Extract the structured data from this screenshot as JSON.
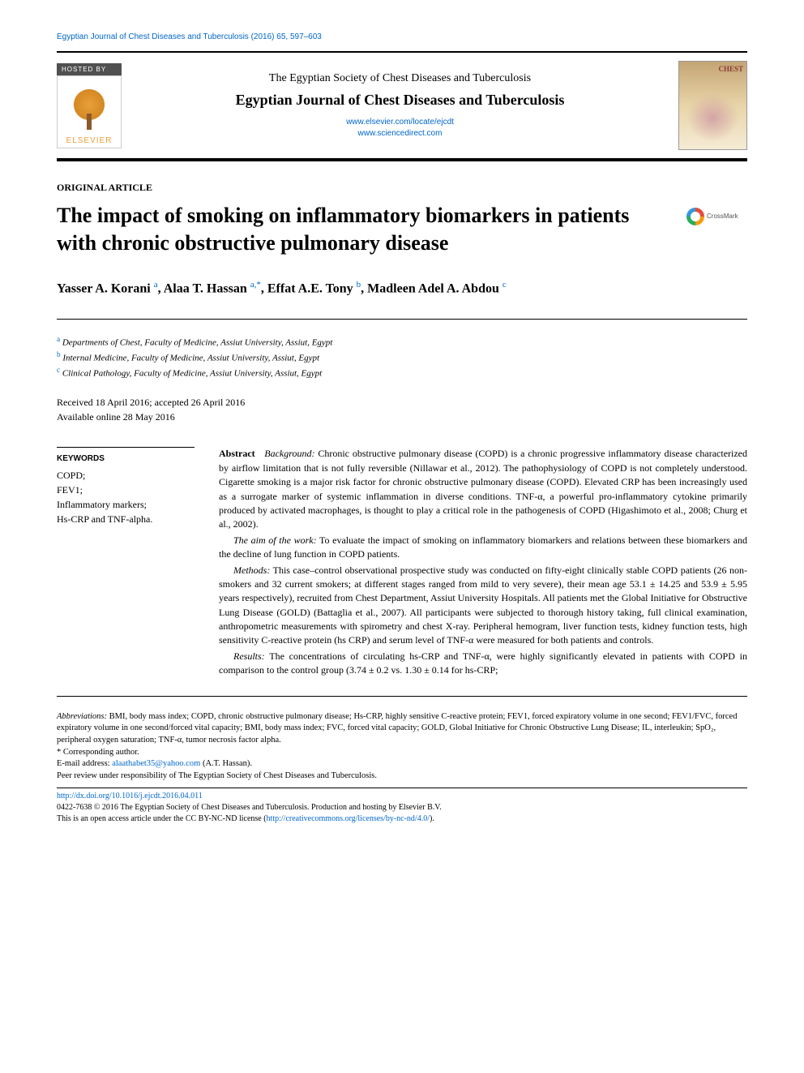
{
  "journal_ref": "Egyptian Journal of Chest Diseases and Tuberculosis (2016) 65, 597–603",
  "header": {
    "hosted_by": "HOSTED BY",
    "publisher": "ELSEVIER",
    "society": "The Egyptian Society of Chest Diseases and Tuberculosis",
    "journal": "Egyptian Journal of Chest Diseases and Tuberculosis",
    "link1": "www.elsevier.com/locate/ejcdt",
    "link2": "www.sciencedirect.com",
    "cover_title": "CHEST"
  },
  "article_type": "ORIGINAL ARTICLE",
  "title": "The impact of smoking on inflammatory biomarkers in patients with chronic obstructive pulmonary disease",
  "crossmark": "CrossMark",
  "authors_html": "Yasser A. Korani <sup>a</sup>, Alaa T. Hassan <sup>a,*</sup>, Effat A.E. Tony <sup>b</sup>, Madleen Adel A. Abdou <sup>c</sup>",
  "affiliations": [
    {
      "sup": "a",
      "text": "Departments of Chest, Faculty of Medicine, Assiut University, Assiut, Egypt"
    },
    {
      "sup": "b",
      "text": "Internal Medicine, Faculty of Medicine, Assiut University, Assiut, Egypt"
    },
    {
      "sup": "c",
      "text": "Clinical Pathology, Faculty of Medicine, Assiut University, Assiut, Egypt"
    }
  ],
  "dates": {
    "received_accepted": "Received 18 April 2016; accepted 26 April 2016",
    "online": "Available online 28 May 2016"
  },
  "keywords": {
    "heading": "KEYWORDS",
    "items": "COPD;\nFEV1;\nInflammatory markers;\nHs-CRP and TNF-alpha."
  },
  "abstract": {
    "label": "Abstract",
    "background_label": "Background:",
    "background": "Chronic obstructive pulmonary disease (COPD) is a chronic progressive inflammatory disease characterized by airflow limitation that is not fully reversible (Nillawar et al., 2012). The pathophysiology of COPD is not completely understood. Cigarette smoking is a major risk factor for chronic obstructive pulmonary disease (COPD). Elevated CRP has been increasingly used as a surrogate marker of systemic inflammation in diverse conditions. TNF-α, a powerful pro-inflammatory cytokine primarily produced by activated macrophages, is thought to play a critical role in the pathogenesis of COPD (Higashimoto et al., 2008; Churg et al., 2002).",
    "aim_label": "The aim of the work:",
    "aim": "To evaluate the impact of smoking on inflammatory biomarkers and relations between these biomarkers and the decline of lung function in COPD patients.",
    "methods_label": "Methods:",
    "methods": "This case–control observational prospective study was conducted on fifty-eight clinically stable COPD patients (26 non-smokers and 32 current smokers; at different stages ranged from mild to very severe), their mean age 53.1 ± 14.25 and 53.9 ± 5.95 years respectively), recruited from Chest Department, Assiut University Hospitals. All patients met the Global Initiative for Obstructive Lung Disease (GOLD) (Battaglia et al., 2007). All participants were subjected to thorough history taking, full clinical examination, anthropometric measurements with spirometry and chest X-ray. Peripheral hemogram, liver function tests, kidney function tests, high sensitivity C-reactive protein (hs CRP) and serum level of TNF-α were measured for both patients and controls.",
    "results_label": "Results:",
    "results": "The concentrations of circulating hs-CRP and TNF-α, were highly significantly elevated in patients with COPD in comparison to the control group (3.74 ± 0.2 vs. 1.30 ± 0.14 for hs-CRP;"
  },
  "footer": {
    "abbrev_label": "Abbreviations:",
    "abbrev": "BMI, body mass index; COPD, chronic obstructive pulmonary disease; Hs-CRP, highly sensitive C-reactive protein; FEV1, forced expiratory volume in one second; FEV1/FVC, forced expiratory volume in one second/forced vital capacity; BMI, body mass index; FVC, forced vital capacity; GOLD, Global Initiative for Chronic Obstructive Lung Disease; IL, interleukin; SpO₂, peripheral oxygen saturation; TNF-α, tumor necrosis factor alpha.",
    "corresponding": "* Corresponding author.",
    "email_label": "E-mail address:",
    "email": "alaathabet35@yahoo.com",
    "email_suffix": "(A.T. Hassan).",
    "peer_review": "Peer review under responsibility of The Egyptian Society of Chest Diseases and Tuberculosis.",
    "doi": "http://dx.doi.org/10.1016/j.ejcdt.2016.04.011",
    "copyright_line1": "0422-7638 © 2016 The Egyptian Society of Chest Diseases and Tuberculosis. Production and hosting by Elsevier B.V.",
    "copyright_line2_prefix": "This is an open access article under the CC BY-NC-ND license (",
    "copyright_license_url": "http://creativecommons.org/licenses/by-nc-nd/4.0/",
    "copyright_line2_suffix": ")."
  },
  "colors": {
    "link": "#0066cc",
    "elsevier_orange": "#e8a03d",
    "rule": "#000000"
  }
}
